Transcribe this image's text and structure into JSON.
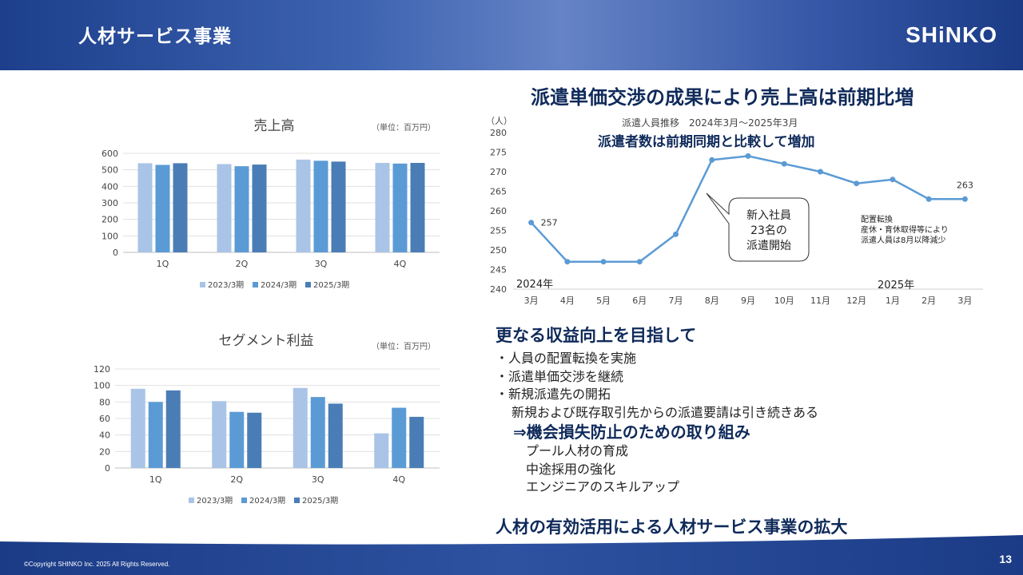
{
  "header": {
    "title": "人材サービス事業",
    "logo": "SHiNKO"
  },
  "footer": {
    "copyright": "©Copyright SHINKO Inc. 2025 All Rights Reserved.",
    "page": "13"
  },
  "colors": {
    "c2023": "#a9c4e6",
    "c2024": "#5b9bd5",
    "c2025": "#4a7db5",
    "line": "#5b9bd5",
    "navy": "#0f2a5a"
  },
  "headline": "派遣単価交渉の成果により売上高は前期比増",
  "chart_data": [
    {
      "type": "bar",
      "title": "売上高",
      "unit_note": "（単位：百万円）",
      "categories": [
        "1Q",
        "2Q",
        "3Q",
        "4Q"
      ],
      "series": [
        {
          "name": "2023/3期",
          "values": [
            540,
            535,
            562,
            542
          ]
        },
        {
          "name": "2024/3期",
          "values": [
            530,
            522,
            555,
            538
          ]
        },
        {
          "name": "2025/3期",
          "values": [
            540,
            532,
            550,
            542
          ]
        }
      ],
      "ylim": [
        0,
        600
      ],
      "yticks": [
        0,
        100,
        200,
        300,
        400,
        500,
        600
      ],
      "legend": "bottom"
    },
    {
      "type": "bar",
      "title": "セグメント利益",
      "unit_note": "（単位：百万円）",
      "categories": [
        "1Q",
        "2Q",
        "3Q",
        "4Q"
      ],
      "series": [
        {
          "name": "2023/3期",
          "values": [
            96,
            81,
            97,
            42
          ]
        },
        {
          "name": "2024/3期",
          "values": [
            80,
            68,
            86,
            73
          ]
        },
        {
          "name": "2025/3期",
          "values": [
            94,
            67,
            78,
            62
          ]
        }
      ],
      "ylim": [
        0,
        120
      ],
      "yticks": [
        0,
        20,
        40,
        60,
        80,
        100,
        120
      ],
      "legend": "bottom"
    },
    {
      "type": "line",
      "subtitle": "派遣人員推移　2024年3月～2025年3月",
      "title": "派遣者数は前期同期と比較して増加",
      "ylabel": "（人）",
      "categories": [
        "3月",
        "4月",
        "5月",
        "6月",
        "7月",
        "8月",
        "9月",
        "10月",
        "11月",
        "12月",
        "1月",
        "2月",
        "3月"
      ],
      "values": [
        257,
        247,
        247,
        247,
        254,
        273,
        274,
        272,
        270,
        267,
        268,
        263,
        263
      ],
      "point_labels": {
        "first": "257",
        "last": "263"
      },
      "ylim": [
        240,
        280
      ],
      "yticks": [
        240,
        245,
        250,
        255,
        260,
        265,
        270,
        275,
        280
      ],
      "year_labels": {
        "start": "2024年",
        "end": "2025年"
      },
      "callout": [
        "新入社員",
        "23名の",
        "派遣開始"
      ],
      "note": [
        "配置転換",
        "産休・育休取得等により",
        "派遣人員は8月以降減少"
      ]
    }
  ],
  "text_block": {
    "heading": "更なる収益向上を目指して",
    "bullets": [
      "・人員の配置転換を実施",
      "・派遣単価交渉を継続",
      "・新規派遣先の開拓"
    ],
    "sub": "新規および既存取引先からの派遣要請は引き続きある",
    "emphasis": "⇒機会損失防止のための取り組み",
    "items": [
      "プール人材の育成",
      "中途採用の強化",
      "エンジニアのスキルアップ"
    ]
  },
  "conclusion": "人材の有効活用による人材サービス事業の拡大"
}
